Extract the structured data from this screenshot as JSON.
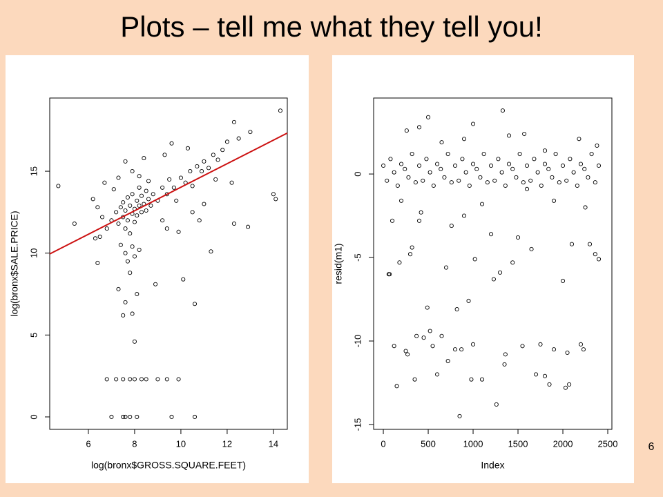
{
  "title": "Plots – tell me what they tell you!",
  "page_number": "6",
  "chart_data": [
    {
      "type": "scatter",
      "xlabel": "log(bronx$GROSS.SQUARE.FEET)",
      "ylabel": "log(bronx$SALE.PRICE)",
      "xlim": [
        4.33,
        14.6
      ],
      "ylim": [
        -0.76,
        19.47
      ],
      "xticks": [
        6,
        8,
        10,
        12,
        14
      ],
      "yticks": [
        0,
        5,
        10,
        15
      ],
      "color": "#000000",
      "x": [
        7.0,
        7.2,
        7.3,
        7.4,
        7.5,
        7.5,
        7.6,
        7.6,
        7.7,
        7.7,
        7.8,
        7.8,
        7.9,
        7.9,
        8.0,
        8.0,
        8.1,
        8.1,
        8.2,
        8.2,
        8.3,
        8.3,
        8.4,
        8.5,
        8.5,
        8.6,
        8.7,
        8.8,
        6.8,
        6.6,
        6.5,
        6.4,
        6.3,
        6.2,
        6.7,
        7.1,
        7.3,
        7.6,
        7.9,
        8.2,
        8.4,
        8.6,
        7.4,
        7.6,
        7.7,
        7.8,
        7.9,
        8.0,
        8.1,
        7.6,
        7.5,
        7.9,
        8.0,
        7.3,
        8.2,
        6.4,
        5.4,
        4.7,
        9.0,
        9.2,
        9.4,
        9.5,
        9.7,
        9.8,
        10.0,
        10.2,
        10.4,
        10.5,
        10.7,
        10.9,
        11.0,
        11.2,
        11.4,
        11.6,
        11.8,
        12.0,
        12.3,
        12.5,
        13.0,
        14.3,
        14.0,
        14.1,
        12.9,
        12.3,
        11.3,
        10.6,
        10.1,
        9.4,
        9.9,
        10.5,
        10.8,
        11.0,
        9.3,
        9.6,
        10.3,
        11.5,
        12.2,
        8.9,
        9.2,
        6.8,
        7.2,
        7.5,
        7.8,
        8.0,
        8.3,
        8.5,
        9.0,
        9.4,
        9.9,
        7.0,
        7.5,
        7.8,
        8.1,
        9.6,
        10.6,
        7.6
      ],
      "y": [
        12.0,
        12.5,
        11.8,
        12.8,
        12.2,
        13.1,
        11.5,
        12.6,
        13.4,
        12.0,
        12.9,
        11.2,
        12.4,
        13.6,
        12.7,
        11.9,
        13.2,
        12.3,
        12.9,
        14.0,
        12.5,
        13.5,
        13.0,
        12.6,
        13.8,
        13.3,
        12.9,
        13.6,
        11.5,
        12.2,
        11.0,
        12.8,
        10.9,
        13.3,
        14.3,
        13.9,
        14.6,
        15.6,
        15.0,
        14.7,
        15.8,
        14.4,
        10.5,
        10.0,
        9.5,
        8.8,
        10.4,
        9.8,
        7.5,
        7.0,
        6.2,
        6.3,
        4.6,
        7.8,
        10.2,
        9.4,
        11.8,
        14.1,
        13.2,
        14.0,
        13.6,
        14.5,
        14.0,
        13.2,
        14.6,
        14.3,
        15.0,
        14.1,
        15.3,
        15.0,
        15.6,
        15.2,
        16.0,
        15.7,
        16.3,
        16.8,
        18.0,
        17.0,
        17.4,
        18.7,
        13.6,
        13.3,
        11.6,
        11.8,
        10.1,
        6.9,
        8.4,
        11.5,
        11.3,
        12.5,
        12.0,
        13.0,
        16.0,
        16.7,
        16.4,
        14.5,
        14.3,
        8.1,
        12.0,
        2.3,
        2.3,
        2.3,
        2.3,
        2.3,
        2.3,
        2.3,
        2.3,
        2.3,
        2.3,
        0,
        0,
        0,
        0,
        0,
        0,
        0
      ],
      "fit_line": {
        "color": "#cc1111",
        "x": [
          4.33,
          14.6
        ],
        "y": [
          9.95,
          17.33
        ]
      }
    },
    {
      "type": "scatter",
      "xlabel": "Index",
      "ylabel": "resid(m1)",
      "xlim": [
        -108,
        2546
      ],
      "ylim": [
        -15.29,
        4.55
      ],
      "xticks": [
        0,
        500,
        1000,
        1500,
        2000,
        2500
      ],
      "yticks": [
        -15,
        -10,
        -5,
        0
      ],
      "color": "#000000",
      "x": [
        0,
        40,
        80,
        120,
        160,
        200,
        240,
        280,
        320,
        360,
        400,
        440,
        480,
        520,
        560,
        600,
        640,
        680,
        720,
        760,
        800,
        840,
        880,
        920,
        960,
        1000,
        1040,
        1080,
        1120,
        1160,
        1200,
        1240,
        1280,
        1320,
        1360,
        1400,
        1440,
        1480,
        1520,
        1560,
        1600,
        1640,
        1680,
        1720,
        1760,
        1800,
        1840,
        1880,
        1920,
        1960,
        2000,
        2040,
        2080,
        2120,
        2160,
        2200,
        2240,
        2280,
        2320,
        2360,
        2400,
        60,
        70,
        120,
        150,
        180,
        250,
        270,
        300,
        320,
        350,
        370,
        400,
        420,
        450,
        490,
        520,
        550,
        600,
        650,
        700,
        720,
        760,
        800,
        820,
        850,
        870,
        900,
        950,
        980,
        1000,
        1020,
        1100,
        1200,
        1230,
        1260,
        1300,
        1350,
        1360,
        1440,
        1500,
        1550,
        1650,
        1700,
        1750,
        1800,
        1850,
        1900,
        2000,
        2030,
        2050,
        2070,
        2100,
        2200,
        2230,
        2300,
        2360,
        2400,
        500,
        1330,
        260,
        400,
        1000,
        1570,
        2180,
        650,
        1800,
        100,
        200,
        1100,
        1900,
        2250,
        1400,
        900,
        2380,
        1600
      ],
      "y": [
        0.5,
        -0.4,
        0.9,
        0.1,
        -0.7,
        0.6,
        0.3,
        -0.2,
        1.2,
        -0.5,
        0.5,
        -0.4,
        0.9,
        0.1,
        -0.7,
        0.6,
        0.3,
        -0.2,
        1.2,
        -0.5,
        0.5,
        -0.4,
        0.9,
        0.1,
        -0.7,
        0.6,
        0.3,
        -0.2,
        1.2,
        -0.5,
        0.5,
        -0.4,
        0.9,
        0.1,
        -0.7,
        0.6,
        0.3,
        -0.2,
        1.2,
        -0.5,
        0.5,
        -0.4,
        0.9,
        0.1,
        -0.7,
        0.6,
        0.3,
        -0.2,
        1.2,
        -0.5,
        0.5,
        -0.4,
        0.9,
        0.1,
        -0.7,
        0.6,
        0.3,
        -0.2,
        1.2,
        -0.5,
        0.5,
        -6.0,
        -6.0,
        -10.3,
        -12.7,
        -5.3,
        -10.6,
        -10.8,
        -4.8,
        -4.4,
        -12.3,
        -9.7,
        -2.8,
        -2.3,
        -9.8,
        -8.0,
        -9.4,
        -10.3,
        -12.0,
        -9.7,
        -5.6,
        -11.2,
        -3.1,
        -10.5,
        -8.1,
        -14.5,
        -10.5,
        -2.5,
        -7.6,
        -12.3,
        -10.2,
        -5.1,
        -12.3,
        -3.6,
        -6.3,
        -13.8,
        -5.9,
        -11.4,
        -10.8,
        -5.3,
        -3.8,
        -10.3,
        -4.5,
        -12.0,
        -10.2,
        -12.1,
        -12.6,
        -10.5,
        -6.4,
        -12.8,
        -10.7,
        -12.6,
        -4.2,
        -10.2,
        -10.5,
        -4.2,
        -4.8,
        -5.1,
        3.4,
        3.8,
        2.6,
        2.8,
        3.0,
        2.4,
        2.1,
        1.9,
        1.4,
        -2.8,
        -1.6,
        -1.8,
        -1.6,
        -2.0,
        2.3,
        2.1,
        1.7,
        -0.9
      ]
    }
  ]
}
